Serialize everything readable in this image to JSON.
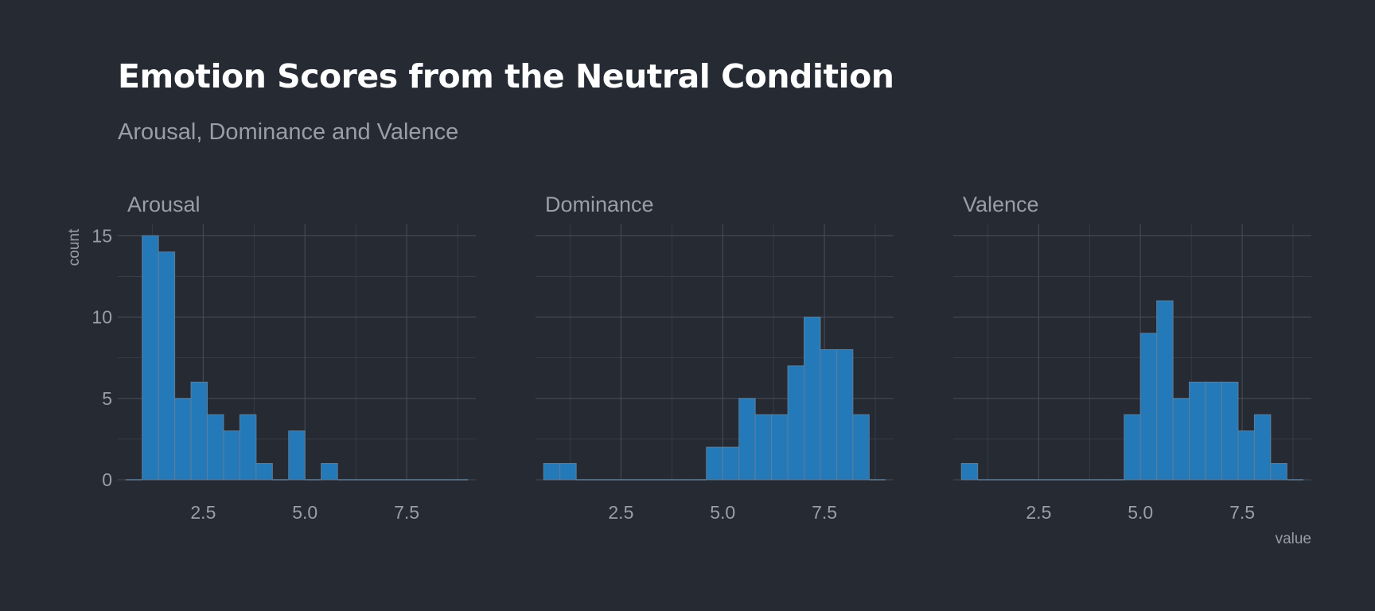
{
  "header": {
    "title": "Emotion Scores from the Neutral Condition",
    "subtitle": "Arousal, Dominance and Valence"
  },
  "colors": {
    "background": "#252a33",
    "bar_fill": "#2479b8",
    "bar_stroke": "#5f7e99",
    "text": "#9a9ea6"
  },
  "chart_data": {
    "type": "bar",
    "subtype": "faceted-histogram",
    "title": "Emotion Scores from the Neutral Condition",
    "subtitle": "Arousal, Dominance and Valence",
    "xlabel": "value",
    "ylabel": "count",
    "bin_width": 0.4,
    "xlim": [
      0.4,
      9.2
    ],
    "ylim": [
      0,
      15.7
    ],
    "x_ticks": [
      2.5,
      5.0,
      7.5
    ],
    "x_tick_labels": [
      "2.5",
      "5.0",
      "7.5"
    ],
    "y_ticks": [
      0,
      5,
      10,
      15
    ],
    "y_tick_labels": [
      "0",
      "5",
      "10",
      "15"
    ],
    "grid": true,
    "facets": [
      {
        "name": "Arousal",
        "bin_centers": [
          0.8,
          1.2,
          1.6,
          2.0,
          2.4,
          2.8,
          3.2,
          3.6,
          4.0,
          4.4,
          4.8,
          5.2,
          5.6,
          6.0,
          6.4,
          6.8,
          7.2,
          7.6,
          8.0,
          8.4,
          8.8
        ],
        "counts": [
          0,
          15,
          14,
          5,
          6,
          4,
          3,
          4,
          1,
          0,
          3,
          0,
          1,
          0,
          0,
          0,
          0,
          0,
          0,
          0,
          0
        ]
      },
      {
        "name": "Dominance",
        "bin_centers": [
          0.8,
          1.2,
          1.6,
          2.0,
          2.4,
          2.8,
          3.2,
          3.6,
          4.0,
          4.4,
          4.8,
          5.2,
          5.6,
          6.0,
          6.4,
          6.8,
          7.2,
          7.6,
          8.0,
          8.4,
          8.8
        ],
        "counts": [
          1,
          1,
          0,
          0,
          0,
          0,
          0,
          0,
          0,
          0,
          2,
          2,
          5,
          4,
          4,
          7,
          10,
          8,
          8,
          4,
          0
        ]
      },
      {
        "name": "Valence",
        "bin_centers": [
          0.8,
          1.2,
          1.6,
          2.0,
          2.4,
          2.8,
          3.2,
          3.6,
          4.0,
          4.4,
          4.8,
          5.2,
          5.6,
          6.0,
          6.4,
          6.8,
          7.2,
          7.6,
          8.0,
          8.4,
          8.8
        ],
        "counts": [
          1,
          0,
          0,
          0,
          0,
          0,
          0,
          0,
          0,
          0,
          4,
          9,
          11,
          5,
          6,
          6,
          6,
          3,
          4,
          1,
          0
        ]
      }
    ]
  }
}
